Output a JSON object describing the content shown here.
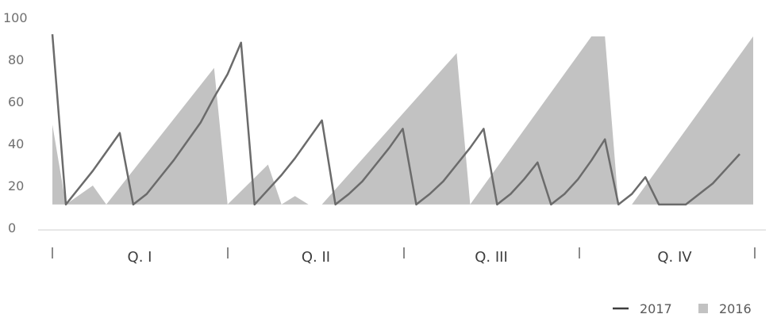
{
  "chart_data": {
    "type": "area",
    "title": "",
    "xlabel": "",
    "ylabel": "",
    "ylim": [
      0,
      100
    ],
    "yticks": [
      "0",
      "20",
      "40",
      "60",
      "80",
      "100"
    ],
    "xlim": [
      0,
      52
    ],
    "categories": [
      "Q. I",
      "Q. II",
      "Q. III",
      "Q. IV"
    ],
    "category_bounds": [
      0,
      13,
      26,
      39,
      52
    ],
    "legend": {
      "position": "bottom-right"
    },
    "grid": false,
    "series": [
      {
        "name": "2016",
        "type": "area",
        "color": "#c2c2c2",
        "baseline": 11,
        "points": [
          [
            0,
            49
          ],
          [
            1,
            11
          ],
          [
            3,
            20
          ],
          [
            4,
            11
          ],
          [
            12,
            76
          ],
          [
            13,
            11
          ],
          [
            16,
            30
          ],
          [
            17,
            11
          ],
          [
            18,
            15
          ],
          [
            19,
            11
          ],
          [
            20,
            11
          ],
          [
            30,
            83
          ],
          [
            31,
            11
          ],
          [
            40,
            91
          ],
          [
            41,
            91
          ],
          [
            42,
            11
          ],
          [
            43,
            11
          ],
          [
            52,
            91
          ]
        ]
      },
      {
        "name": "2017",
        "type": "line",
        "color": "#6b6b6b",
        "points": [
          [
            0,
            92
          ],
          [
            1,
            11
          ],
          [
            2,
            19
          ],
          [
            3,
            27
          ],
          [
            4,
            36
          ],
          [
            5,
            45
          ],
          [
            6,
            11
          ],
          [
            7,
            16
          ],
          [
            8,
            24
          ],
          [
            9,
            32
          ],
          [
            10,
            41
          ],
          [
            11,
            50
          ],
          [
            12,
            62
          ],
          [
            13,
            73
          ],
          [
            14,
            88
          ],
          [
            15,
            11
          ],
          [
            16,
            18
          ],
          [
            17,
            25
          ],
          [
            18,
            33
          ],
          [
            19,
            42
          ],
          [
            20,
            51
          ],
          [
            21,
            11
          ],
          [
            22,
            16
          ],
          [
            23,
            22
          ],
          [
            24,
            30
          ],
          [
            25,
            38
          ],
          [
            26,
            47
          ],
          [
            27,
            11
          ],
          [
            28,
            16
          ],
          [
            29,
            22
          ],
          [
            30,
            30
          ],
          [
            31,
            38
          ],
          [
            32,
            47
          ],
          [
            33,
            11
          ],
          [
            34,
            16
          ],
          [
            35,
            23
          ],
          [
            36,
            31
          ],
          [
            37,
            11
          ],
          [
            38,
            16
          ],
          [
            39,
            23
          ],
          [
            40,
            32
          ],
          [
            41,
            42
          ],
          [
            42,
            11
          ],
          [
            43,
            16
          ],
          [
            44,
            24
          ],
          [
            45,
            11
          ],
          [
            46,
            11
          ],
          [
            47,
            11
          ],
          [
            48,
            16
          ],
          [
            49,
            21
          ],
          [
            50,
            28
          ],
          [
            51,
            35
          ]
        ]
      }
    ]
  }
}
